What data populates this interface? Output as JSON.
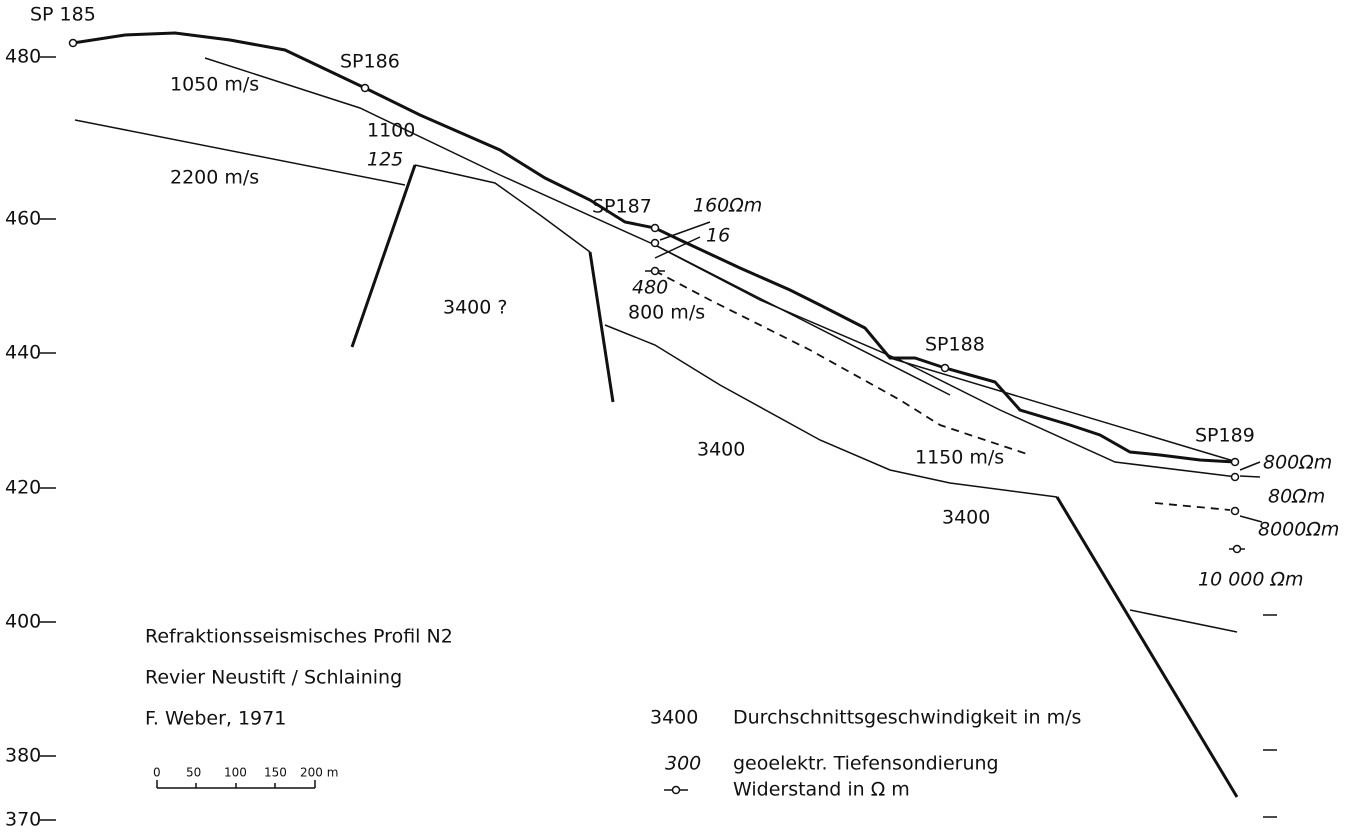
{
  "axis": {
    "labels": [
      "480",
      "460",
      "440",
      "420",
      "400",
      "380",
      "370"
    ]
  },
  "shotpoints": [
    "SP 185",
    "SP186",
    "SP187",
    "SP188",
    "SP189"
  ],
  "velocities": [
    "1050 m/s",
    "1100",
    "2200 m/s",
    "3400 ?",
    "800 m/s",
    "3400",
    "1150 m/s",
    "3400"
  ],
  "soundings": [
    "125",
    "160Ωm",
    "16",
    "480",
    "800Ωm",
    "80Ωm",
    "8000Ωm",
    "10 000 Ωm"
  ],
  "caption": [
    "Refraktionsseismisches Profil N2",
    "Revier Neustift / Schlaining",
    "F. Weber, 1971"
  ],
  "scale": {
    "ticks": [
      "0",
      "50",
      "100",
      "150",
      "200 m"
    ]
  },
  "legend": [
    {
      "key": "3400",
      "text": "Durchschnittsgeschwindigkeit in m/s"
    },
    {
      "key": "300",
      "text": "geoelektr. Tiefensondierung"
    },
    {
      "text": "Widerstand in Ω m"
    }
  ]
}
